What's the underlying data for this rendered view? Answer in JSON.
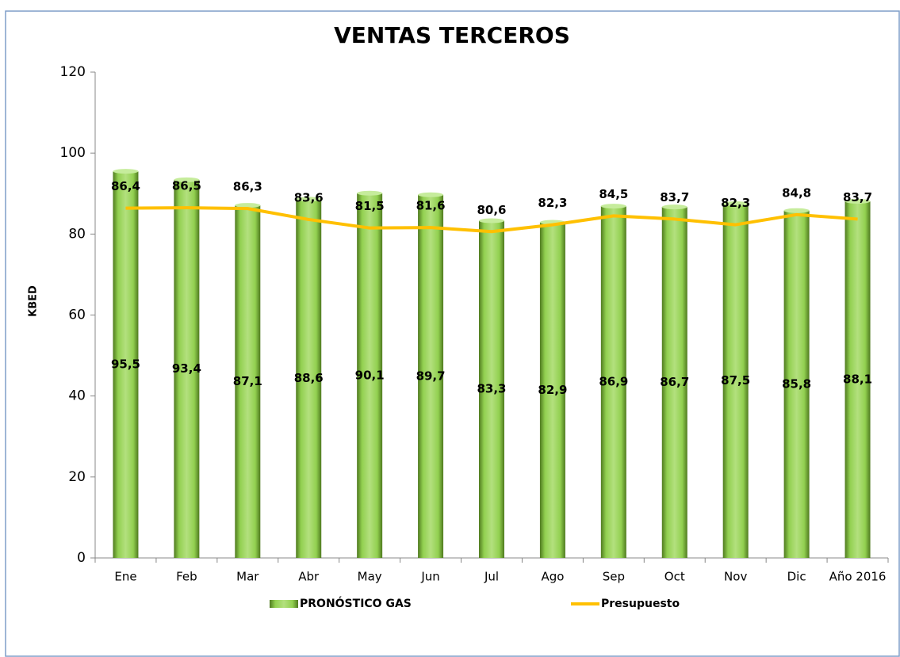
{
  "chart_data": {
    "type": "bar",
    "title": "VENTAS TERCEROS",
    "y_label": "KBED",
    "categories": [
      "Ene",
      "Feb",
      "Mar",
      "Abr",
      "May",
      "Jun",
      "Jul",
      "Ago",
      "Sep",
      "Oct",
      "Nov",
      "Dic",
      "Año 2016"
    ],
    "series": [
      {
        "name": "PRONÓSTICO GAS",
        "type": "bar",
        "color": "#92d050",
        "values": [
          95.5,
          93.4,
          87.1,
          88.6,
          90.1,
          89.7,
          83.3,
          82.9,
          86.9,
          86.7,
          87.5,
          85.8,
          88.1
        ],
        "value_labels": [
          "95,5",
          "93,4",
          "87,1",
          "88,6",
          "90,1",
          "89,7",
          "83,3",
          "82,9",
          "86,9",
          "86,7",
          "87,5",
          "85,8",
          "88,1"
        ]
      },
      {
        "name": "Presupuesto",
        "type": "line",
        "color": "#ffc000",
        "values": [
          86.4,
          86.5,
          86.3,
          83.6,
          81.5,
          81.6,
          80.6,
          82.3,
          84.5,
          83.7,
          82.3,
          84.8,
          83.7
        ],
        "value_labels": [
          "86,4",
          "86,5",
          "86,3",
          "83,6",
          "81,5",
          "81,6",
          "80,6",
          "82,3",
          "84,5",
          "83,7",
          "82,3",
          "84,8",
          "83,7"
        ]
      }
    ],
    "ylim": [
      0,
      120
    ],
    "yticks": [
      0,
      20,
      40,
      60,
      80,
      100,
      120
    ],
    "legend": "bottom"
  }
}
